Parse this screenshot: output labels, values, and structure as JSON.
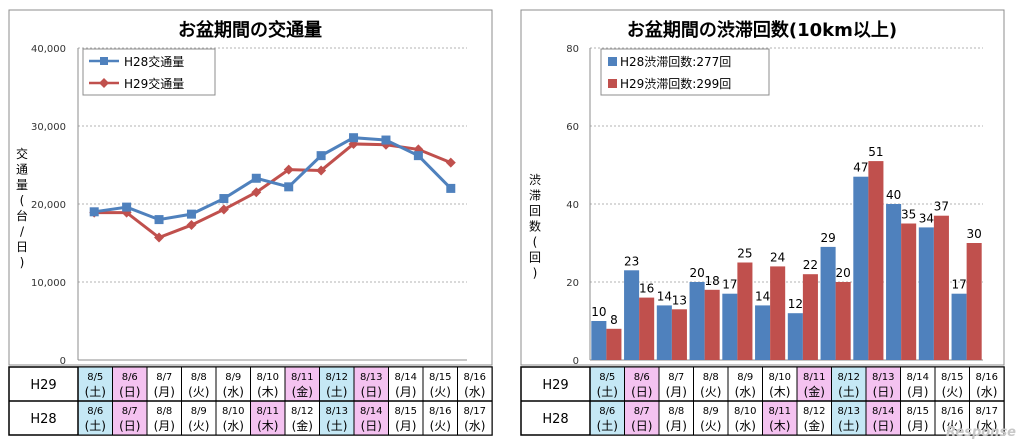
{
  "charts": [
    {
      "title": "お盆期間の交通量",
      "ylabel": "交通量(台/日)",
      "yticks": [
        "0",
        "10,000",
        "20,000",
        "30,000",
        "40,000"
      ],
      "ylim": [
        0,
        40000
      ]
    },
    {
      "title": "お盆期間の渋滞回数(10km以上)",
      "ylabel": "渋滞回数(回)",
      "yticks": [
        "0",
        "20",
        "40",
        "60",
        "80"
      ],
      "ylim": [
        0,
        80
      ]
    }
  ],
  "chart_data": [
    {
      "type": "line",
      "title": "お盆期間の交通量",
      "ylabel": "交通量(台/日)",
      "ylim": [
        0,
        40000
      ],
      "grid": true,
      "legend_position": "top-left",
      "series": [
        {
          "name": "H28交通量",
          "color": "#4f81bd",
          "marker": "square",
          "values": [
            19000,
            19600,
            18000,
            18700,
            20700,
            23300,
            22200,
            26200,
            28500,
            28200,
            26200,
            22000
          ]
        },
        {
          "name": "H29交通量",
          "color": "#c0504d",
          "marker": "diamond",
          "values": [
            18900,
            18900,
            15700,
            17300,
            19300,
            21500,
            24400,
            24300,
            27700,
            27600,
            27000,
            25300
          ]
        }
      ]
    },
    {
      "type": "bar",
      "title": "お盆期間の渋滞回数(10km以上)",
      "ylabel": "渋滞回数(回)",
      "ylim": [
        0,
        80
      ],
      "grid": true,
      "legend_position": "top-left",
      "series": [
        {
          "name": "H28渋滞回数:277回",
          "color": "#4f81bd",
          "values": [
            10,
            23,
            14,
            20,
            17,
            14,
            12,
            29,
            47,
            40,
            34,
            17
          ]
        },
        {
          "name": "H29渋滞回数:299回",
          "color": "#c0504d",
          "values": [
            8,
            16,
            13,
            18,
            25,
            24,
            22,
            20,
            51,
            35,
            37,
            30
          ]
        }
      ]
    }
  ],
  "date_table": {
    "row_labels": [
      "H29",
      "H28"
    ],
    "h29": [
      {
        "date": "8/5",
        "dow": "(土)",
        "type": "sat"
      },
      {
        "date": "8/6",
        "dow": "(日)",
        "type": "hol"
      },
      {
        "date": "8/7",
        "dow": "(月)",
        "type": "wk"
      },
      {
        "date": "8/8",
        "dow": "(火)",
        "type": "wk"
      },
      {
        "date": "8/9",
        "dow": "(水)",
        "type": "wk"
      },
      {
        "date": "8/10",
        "dow": "(木)",
        "type": "wk"
      },
      {
        "date": "8/11",
        "dow": "(金)",
        "type": "hol"
      },
      {
        "date": "8/12",
        "dow": "(土)",
        "type": "sat"
      },
      {
        "date": "8/13",
        "dow": "(日)",
        "type": "hol"
      },
      {
        "date": "8/14",
        "dow": "(月)",
        "type": "wk"
      },
      {
        "date": "8/15",
        "dow": "(火)",
        "type": "wk"
      },
      {
        "date": "8/16",
        "dow": "(水)",
        "type": "wk"
      }
    ],
    "h28": [
      {
        "date": "8/6",
        "dow": "(土)",
        "type": "sat"
      },
      {
        "date": "8/7",
        "dow": "(日)",
        "type": "hol"
      },
      {
        "date": "8/8",
        "dow": "(月)",
        "type": "wk"
      },
      {
        "date": "8/9",
        "dow": "(火)",
        "type": "wk"
      },
      {
        "date": "8/10",
        "dow": "(水)",
        "type": "wk"
      },
      {
        "date": "8/11",
        "dow": "(木)",
        "type": "hol"
      },
      {
        "date": "8/12",
        "dow": "(金)",
        "type": "wk"
      },
      {
        "date": "8/13",
        "dow": "(土)",
        "type": "sat"
      },
      {
        "date": "8/14",
        "dow": "(日)",
        "type": "hol"
      },
      {
        "date": "8/15",
        "dow": "(月)",
        "type": "wk"
      },
      {
        "date": "8/16",
        "dow": "(火)",
        "type": "wk"
      },
      {
        "date": "8/17",
        "dow": "(水)",
        "type": "wk"
      }
    ]
  },
  "colors": {
    "sat": "#c5e8f5",
    "hol": "#f4c2f0",
    "wk": "#ffffff"
  },
  "watermark": "Response"
}
